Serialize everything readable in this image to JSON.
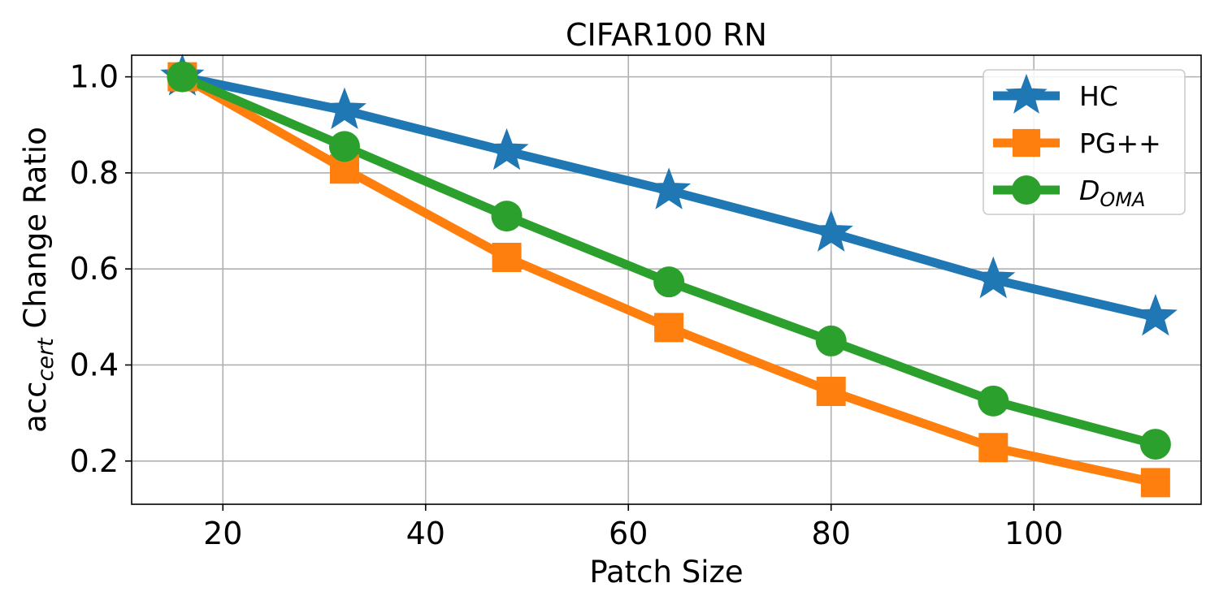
{
  "chart_data": {
    "type": "line",
    "title": "CIFAR100 RN",
    "xlabel": "Patch Size",
    "ylabel": {
      "main": "acc",
      "sub": "cert",
      "rest": " Change Ratio"
    },
    "x": [
      16,
      32,
      48,
      64,
      80,
      96,
      112
    ],
    "xlim": [
      11,
      116.5
    ],
    "ylim": [
      0.11,
      1.045
    ],
    "xticks": [
      20,
      40,
      60,
      80,
      100
    ],
    "xtick_labels": [
      "20",
      "40",
      "60",
      "80",
      "100"
    ],
    "yticks": [
      0.2,
      0.4,
      0.6,
      0.8,
      1.0
    ],
    "ytick_labels": [
      "0.2",
      "0.4",
      "0.6",
      "0.8",
      "1.0"
    ],
    "grid": true,
    "legend_position": "top-right",
    "series": [
      {
        "name": "HC",
        "legend_main": "HC",
        "legend_sub": "",
        "marker": "star",
        "color": "#1f77b4",
        "values": [
          1.0,
          0.93,
          0.845,
          0.763,
          0.675,
          0.578,
          0.5
        ]
      },
      {
        "name": "PG++",
        "legend_main": "PG++",
        "legend_sub": "",
        "marker": "square",
        "color": "#ff7f0e",
        "values": [
          1.0,
          0.808,
          0.624,
          0.478,
          0.345,
          0.228,
          0.155
        ]
      },
      {
        "name": "DOMA",
        "legend_main": "D",
        "legend_sub": "OMA",
        "marker": "circle",
        "color": "#2ca02c",
        "values": [
          1.0,
          0.855,
          0.71,
          0.573,
          0.45,
          0.325,
          0.235
        ]
      }
    ]
  }
}
